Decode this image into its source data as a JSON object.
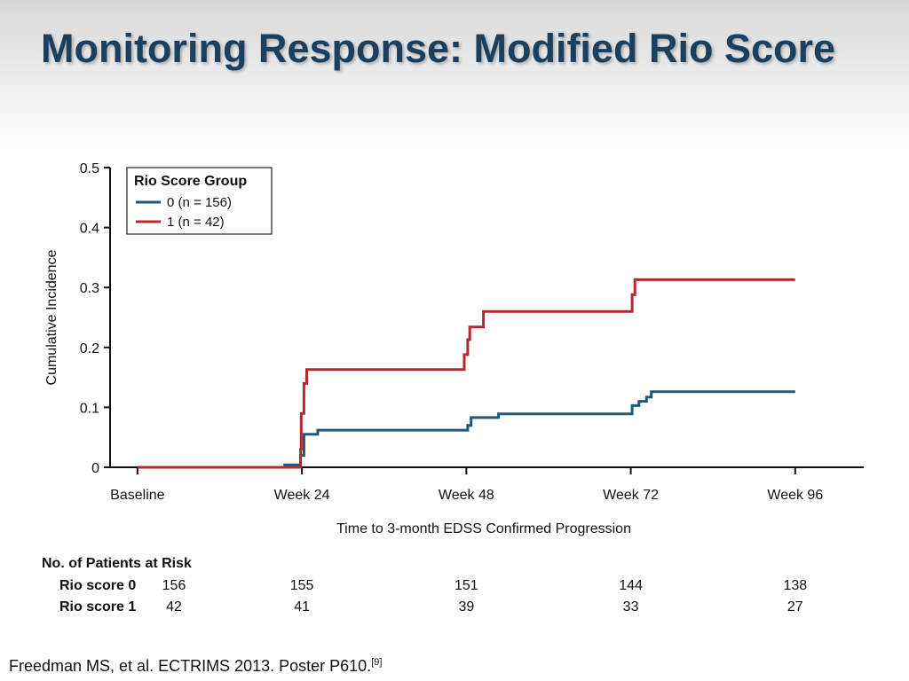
{
  "slide": {
    "title": "Monitoring Response: Modified Rio Score",
    "citation": "Freedman MS, et al. ECTRIMS 2013. Poster P610.",
    "citation_ref": "[9]"
  },
  "chart_data": {
    "type": "line",
    "subtype": "step",
    "xlabel": "Time to 3-month EDSS Confirmed Progression",
    "ylabel": "Cumulative Incidence",
    "categories": [
      "Baseline",
      "Week 24",
      "Week 48",
      "Week 72",
      "Week 96"
    ],
    "x_values": [
      0,
      24,
      48,
      72,
      96
    ],
    "xlim": [
      -4,
      106
    ],
    "ylim": [
      0,
      0.5
    ],
    "yticks": [
      0,
      0.1,
      0.2,
      0.3,
      0.4,
      0.5
    ],
    "ytick_labels": [
      "0",
      "0.1",
      "0.2",
      "0.3",
      "0.4",
      "0.5"
    ],
    "grid": false,
    "legend": {
      "title": "Rio Score Group",
      "placement": "top-left"
    },
    "series": [
      {
        "name": "0 (n = 156)",
        "color": "#1f5a7a",
        "points": [
          [
            0,
            0
          ],
          [
            21.5,
            0
          ],
          [
            21.5,
            0.004
          ],
          [
            23.8,
            0.004
          ],
          [
            23.8,
            0.02
          ],
          [
            24.3,
            0.02
          ],
          [
            24.3,
            0.055
          ],
          [
            26.3,
            0.055
          ],
          [
            26.3,
            0.062
          ],
          [
            48.2,
            0.062
          ],
          [
            48.2,
            0.07
          ],
          [
            48.7,
            0.07
          ],
          [
            48.7,
            0.083
          ],
          [
            52.7,
            0.083
          ],
          [
            52.7,
            0.089
          ],
          [
            72.2,
            0.089
          ],
          [
            72.2,
            0.103
          ],
          [
            73.2,
            0.103
          ],
          [
            73.2,
            0.11
          ],
          [
            74.3,
            0.11
          ],
          [
            74.3,
            0.117
          ],
          [
            75.0,
            0.117
          ],
          [
            75.0,
            0.126
          ],
          [
            96,
            0.126
          ]
        ]
      },
      {
        "name": "1 (n = 42)",
        "color": "#b5282e",
        "points": [
          [
            0,
            0
          ],
          [
            23.8,
            0
          ],
          [
            23.8,
            0.03
          ],
          [
            23.9,
            0.03
          ],
          [
            23.9,
            0.09
          ],
          [
            24.3,
            0.09
          ],
          [
            24.3,
            0.14
          ],
          [
            24.7,
            0.14
          ],
          [
            24.7,
            0.163
          ],
          [
            47.7,
            0.163
          ],
          [
            47.7,
            0.188
          ],
          [
            48.2,
            0.188
          ],
          [
            48.2,
            0.213
          ],
          [
            48.5,
            0.213
          ],
          [
            48.5,
            0.234
          ],
          [
            50.5,
            0.234
          ],
          [
            50.5,
            0.26
          ],
          [
            72.2,
            0.26
          ],
          [
            72.2,
            0.288
          ],
          [
            72.6,
            0.288
          ],
          [
            72.6,
            0.313
          ],
          [
            96,
            0.313
          ]
        ]
      }
    ],
    "risk_table": {
      "title": "No. of Patients at Risk",
      "rows": [
        {
          "label": "Rio score 0",
          "values": [
            "156",
            "155",
            "151",
            "144",
            "138"
          ]
        },
        {
          "label": "Rio score 1",
          "values": [
            "42",
            "41",
            "39",
            "33",
            "27"
          ]
        }
      ]
    }
  }
}
